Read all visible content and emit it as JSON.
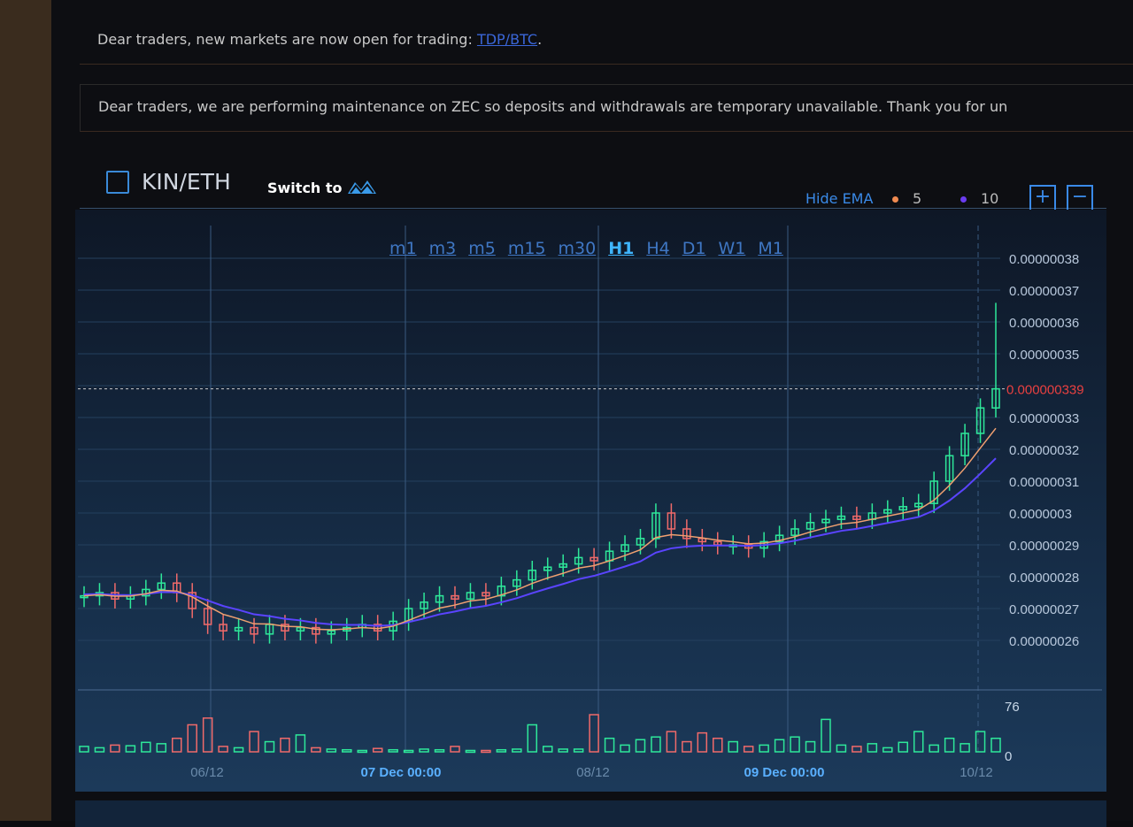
{
  "notices": [
    {
      "text": "Dear traders, new markets are now open for trading: ",
      "link": "TDP/BTC",
      "suffix": "."
    },
    {
      "text": "Dear traders, we are performing maintenance on ZEC so deposits and withdrawals are temporary unavailable. Thank you for un"
    }
  ],
  "header": {
    "pair": "KIN/ETH",
    "switch_label": "Switch to",
    "hide_ema": "Hide EMA",
    "ema": [
      {
        "period": "5",
        "color": "#f08a50"
      },
      {
        "period": "10",
        "color": "#6a3cf0"
      }
    ],
    "zoom_in": "+",
    "zoom_out": "−"
  },
  "timeframes": [
    {
      "label": "m1"
    },
    {
      "label": "m3"
    },
    {
      "label": "m5"
    },
    {
      "label": "m15"
    },
    {
      "label": "m30"
    },
    {
      "label": "H1",
      "active": true
    },
    {
      "label": "H4"
    },
    {
      "label": "D1"
    },
    {
      "label": "W1"
    },
    {
      "label": "M1"
    }
  ],
  "chart_data": {
    "type": "candlestick",
    "price_ticks": [
      "0.00000038",
      "0.00000037",
      "0.00000036",
      "0.00000035",
      "0.00000033",
      "0.00000032",
      "0.00000031",
      "0.0000003",
      "0.00000029",
      "0.00000028",
      "0.00000027",
      "0.00000026"
    ],
    "last_price": "0.000000339",
    "ylim": [
      2.55e-07,
      3.8e-07
    ],
    "x_labels": [
      "06/12",
      "07 Dec 00:00",
      "08/12",
      "09 Dec 00:00",
      "10/12"
    ],
    "volume_ticks": [
      "76",
      "0"
    ],
    "volume_max": 76,
    "closes": [
      2.74e-07,
      2.75e-07,
      2.73e-07,
      2.74e-07,
      2.76e-07,
      2.78e-07,
      2.75e-07,
      2.7e-07,
      2.65e-07,
      2.63e-07,
      2.64e-07,
      2.62e-07,
      2.65e-07,
      2.63e-07,
      2.64e-07,
      2.62e-07,
      2.63e-07,
      2.64e-07,
      2.65e-07,
      2.63e-07,
      2.66e-07,
      2.7e-07,
      2.72e-07,
      2.74e-07,
      2.73e-07,
      2.75e-07,
      2.74e-07,
      2.77e-07,
      2.79e-07,
      2.82e-07,
      2.83e-07,
      2.84e-07,
      2.86e-07,
      2.85e-07,
      2.88e-07,
      2.9e-07,
      2.92e-07,
      3e-07,
      2.95e-07,
      2.92e-07,
      2.91e-07,
      2.9e-07,
      2.9e-07,
      2.89e-07,
      2.91e-07,
      2.93e-07,
      2.95e-07,
      2.97e-07,
      2.98e-07,
      2.99e-07,
      2.98e-07,
      3e-07,
      3.01e-07,
      3.02e-07,
      3.03e-07,
      3.1e-07,
      3.18e-07,
      3.25e-07,
      3.33e-07,
      3.39e-07
    ],
    "last_high": 3.66e-07,
    "volumes": [
      8,
      6,
      10,
      9,
      14,
      12,
      20,
      40,
      50,
      8,
      6,
      30,
      15,
      20,
      25,
      6,
      4,
      3,
      2,
      5,
      3,
      2,
      4,
      3,
      8,
      2,
      2,
      3,
      4,
      40,
      8,
      4,
      4,
      55,
      20,
      10,
      18,
      22,
      30,
      15,
      28,
      20,
      15,
      8,
      10,
      18,
      22,
      15,
      48,
      10,
      8,
      12,
      6,
      14,
      30,
      10,
      20,
      12,
      30,
      20
    ],
    "colors": {
      "up": "#2ee89a",
      "down": "#f06a6a",
      "ema5": "#f0a070",
      "ema10": "#5a44ff",
      "last_price": "#e84040"
    }
  }
}
